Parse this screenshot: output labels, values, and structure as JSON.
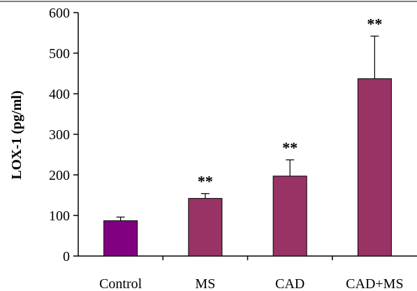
{
  "chart_data": {
    "type": "bar",
    "categories": [
      "Control",
      "MS",
      "CAD",
      "CAD+MS"
    ],
    "values": [
      87,
      142,
      197,
      437
    ],
    "error_upper": [
      96,
      154,
      237,
      542
    ],
    "significance": [
      "",
      "**",
      "**",
      "**"
    ],
    "bar_colors": [
      "#800080",
      "#993366",
      "#993366",
      "#993366"
    ],
    "ylabel": "LOX-1 (pg/ml)",
    "xlabel": "",
    "ylim": [
      0,
      600
    ],
    "yticks": [
      0,
      100,
      200,
      300,
      400,
      500,
      600
    ],
    "grid": false
  }
}
